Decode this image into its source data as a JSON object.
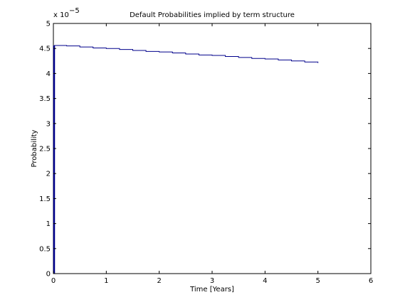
{
  "chart_data": {
    "type": "line",
    "title": "Default Probabilities implied by term structure",
    "xlabel": "Time [Years]",
    "ylabel": "Probability",
    "exponent_label": {
      "base": "x 10",
      "power": "−5"
    },
    "xlim": [
      0,
      6
    ],
    "ylim": [
      0,
      5
    ],
    "x_ticks": [
      0,
      1,
      2,
      3,
      4,
      5,
      6
    ],
    "x_tick_labels": [
      "0",
      "1",
      "2",
      "3",
      "4",
      "5",
      "6"
    ],
    "y_ticks": [
      0,
      0.5,
      1,
      1.5,
      2,
      2.5,
      3,
      3.5,
      4,
      4.5,
      5
    ],
    "y_tick_labels": [
      "0",
      "0.5",
      "1",
      "1.5",
      "2",
      "2.5",
      "3",
      "3.5",
      "4",
      "4.5",
      "5"
    ],
    "grid": false,
    "series": [
      {
        "color": "#00008B",
        "step_interval": 0.25,
        "x": [
          0,
          0,
          0.25,
          0.5,
          0.75,
          1,
          1.25,
          1.5,
          1.75,
          2,
          2.25,
          2.5,
          2.75,
          3,
          3.25,
          3.5,
          3.75,
          4,
          4.25,
          4.5,
          4.75,
          5
        ],
        "y": [
          0,
          4.56,
          4.55,
          4.53,
          4.51,
          4.5,
          4.48,
          4.46,
          4.44,
          4.43,
          4.41,
          4.39,
          4.37,
          4.36,
          4.34,
          4.32,
          4.3,
          4.29,
          4.27,
          4.25,
          4.23,
          4.21
        ]
      }
    ]
  }
}
